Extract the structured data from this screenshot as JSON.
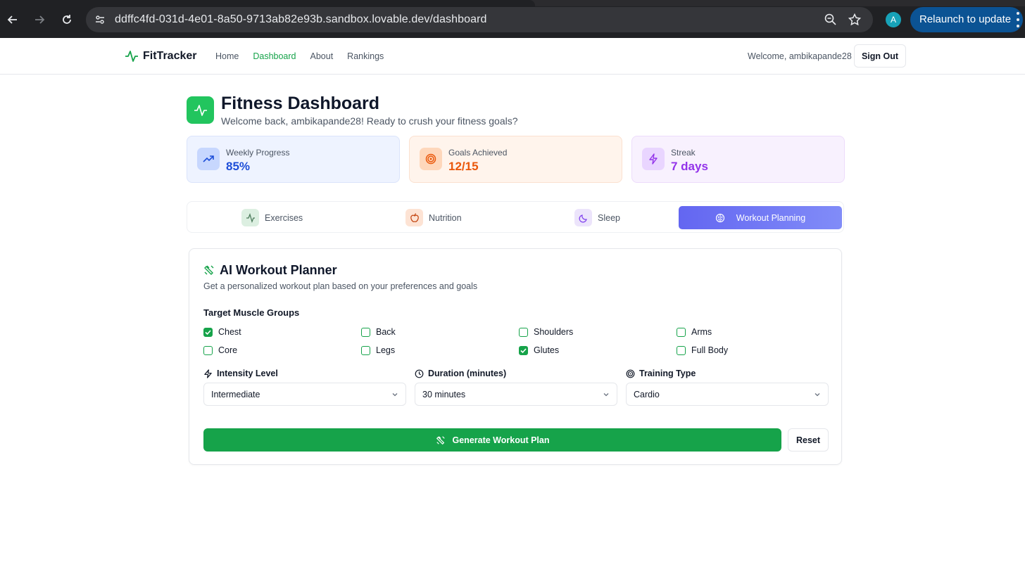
{
  "browser": {
    "url": "ddffc4fd-031d-4e01-8a50-9713ab82e93b.sandbox.lovable.dev/dashboard",
    "profile_initial": "A",
    "relaunch_label": "Relaunch to update"
  },
  "nav": {
    "brand": "FitTracker",
    "links": [
      "Home",
      "Dashboard",
      "About",
      "Rankings"
    ],
    "active_link": "Dashboard",
    "welcome": "Welcome, ambikapande28",
    "signout_label": "Sign Out"
  },
  "header": {
    "title": "Fitness Dashboard",
    "subtitle": "Welcome back, ambikapande28! Ready to crush your fitness goals?"
  },
  "stats": [
    {
      "label": "Weekly Progress",
      "value": "85%",
      "icon": "trending-up-icon",
      "color": "#1d4ed8"
    },
    {
      "label": "Goals Achieved",
      "value": "12/15",
      "icon": "target-icon",
      "color": "#ea580c"
    },
    {
      "label": "Streak",
      "value": "7 days",
      "icon": "zap-icon",
      "color": "#9333ea"
    }
  ],
  "tabs": [
    {
      "label": "Exercises",
      "icon": "activity-icon"
    },
    {
      "label": "Nutrition",
      "icon": "apple-icon"
    },
    {
      "label": "Sleep",
      "icon": "moon-icon"
    },
    {
      "label": "Workout Planning",
      "icon": "brain-icon",
      "active": true
    }
  ],
  "planner": {
    "title": "AI Workout Planner",
    "description": "Get a personalized workout plan based on your preferences and goals",
    "muscle_label": "Target Muscle Groups",
    "muscles": [
      {
        "label": "Chest",
        "checked": true
      },
      {
        "label": "Back",
        "checked": false
      },
      {
        "label": "Shoulders",
        "checked": false
      },
      {
        "label": "Arms",
        "checked": false
      },
      {
        "label": "Core",
        "checked": false
      },
      {
        "label": "Legs",
        "checked": false
      },
      {
        "label": "Glutes",
        "checked": true
      },
      {
        "label": "Full Body",
        "checked": false
      }
    ],
    "intensity": {
      "label": "Intensity Level",
      "value": "Intermediate"
    },
    "duration": {
      "label": "Duration (minutes)",
      "value": "30 minutes"
    },
    "training": {
      "label": "Training Type",
      "value": "Cardio"
    },
    "generate_label": "Generate Workout Plan",
    "reset_label": "Reset"
  },
  "colors": {
    "accent": "#16a34a",
    "tab_active": "#6366f1"
  }
}
